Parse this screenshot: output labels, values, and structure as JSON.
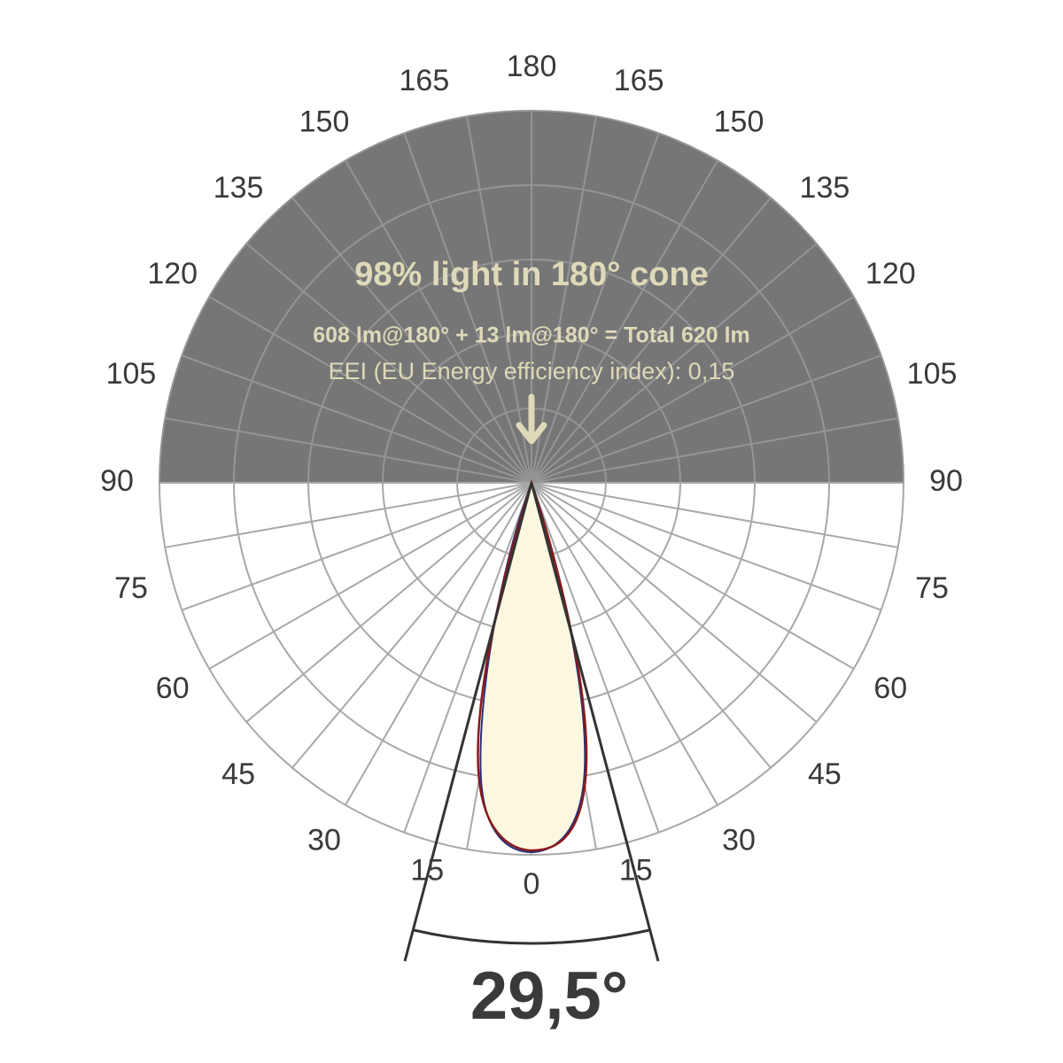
{
  "header": {
    "title": "98% light in 180° cone",
    "flux": "608 lm@180° + 13 lm@180° = Total 620 lm",
    "eei": "EEI (EU Energy efficiency index): 0,15"
  },
  "angle_labels": [
    0,
    15,
    30,
    45,
    60,
    75,
    90,
    105,
    120,
    135,
    150,
    165,
    180
  ],
  "beam_angle": "29,5°"
}
